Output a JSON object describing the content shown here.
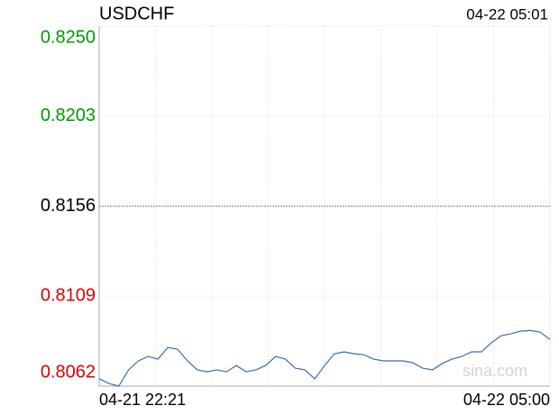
{
  "chart_data": {
    "type": "line",
    "title": "USDCHF",
    "timestamp": "04-22 05:01",
    "watermark": "sina.com",
    "x": [
      "04-21 22:21",
      null,
      null,
      null,
      null,
      null,
      null,
      null,
      null,
      null,
      null,
      null,
      null,
      null,
      null,
      null,
      null,
      null,
      null,
      null,
      null,
      null,
      null,
      null,
      null,
      null,
      null,
      null,
      null,
      null,
      null,
      null,
      null,
      null,
      null,
      null,
      null,
      null,
      null,
      null,
      null,
      null,
      null,
      null,
      null,
      null,
      "04-22 05:00"
    ],
    "series": [
      {
        "name": "USDCHF",
        "color": "#3a6cb4",
        "values": [
          0.80658,
          0.80634,
          0.8062,
          0.80705,
          0.80752,
          0.80775,
          0.80761,
          0.80822,
          0.80813,
          0.80752,
          0.80705,
          0.80695,
          0.80705,
          0.80695,
          0.80728,
          0.80695,
          0.80705,
          0.80728,
          0.80775,
          0.80761,
          0.80714,
          0.80705,
          0.80658,
          0.80728,
          0.80789,
          0.80799,
          0.80789,
          0.80784,
          0.80761,
          0.80752,
          0.80752,
          0.80752,
          0.80742,
          0.80714,
          0.80705,
          0.80738,
          0.80761,
          0.80775,
          0.80799,
          0.80799,
          0.80846,
          0.80883,
          0.80893,
          0.80907,
          0.80911,
          0.80902,
          0.80864
        ]
      }
    ],
    "ylim": [
      0.8062,
      0.825
    ],
    "yticks": [
      0.8062,
      0.8109,
      0.8156,
      0.8203,
      {
        "value": 0.825,
        "label": "0.8250"
      }
    ],
    "ytick_colors": [
      "#e00000",
      "#e00000",
      "#000000",
      "#009900",
      "#009900"
    ],
    "grid": true
  }
}
